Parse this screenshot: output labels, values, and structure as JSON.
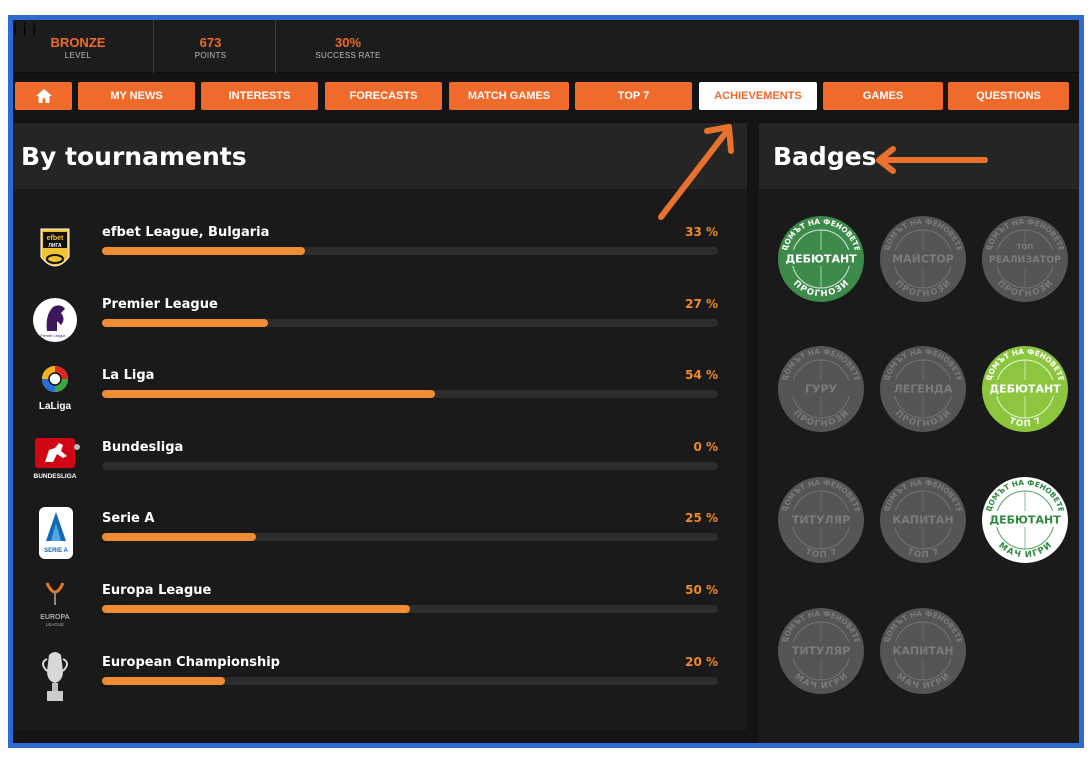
{
  "stats": [
    {
      "value": "BRONZE",
      "label": "LEVEL"
    },
    {
      "value": "673",
      "label": "POINTS"
    },
    {
      "value": "30%",
      "label": "SUCCESS RATE"
    }
  ],
  "info_glyph": "i",
  "nav": {
    "home_icon": "home-icon",
    "items": [
      "MY NEWS",
      "INTERESTS",
      "FORECASTS",
      "MATCH GAMES",
      "TOP 7",
      "ACHIEVEMENTS",
      "GAMES",
      "QUESTIONS"
    ],
    "active": "ACHIEVEMENTS"
  },
  "left_panel": {
    "title": "By tournaments",
    "tournaments": [
      {
        "name": "efbet League, Bulgaria",
        "percent_text": "33 %",
        "progress": 0.33,
        "logo": "efbet-league-logo",
        "logo_text": [
          "efbet",
          "ЛИГА"
        ]
      },
      {
        "name": "Premier League",
        "percent_text": "27 %",
        "progress": 0.27,
        "logo": "premier-league-logo",
        "logo_text": [
          "Premier League"
        ]
      },
      {
        "name": "La Liga",
        "percent_text": "54 %",
        "progress": 0.54,
        "logo": "la-liga-logo",
        "logo_text": [
          "LaLiga"
        ]
      },
      {
        "name": "Bundesliga",
        "percent_text": "0 %",
        "progress": 0.0,
        "logo": "bundesliga-logo",
        "logo_text": [
          "BUNDESLIGA"
        ]
      },
      {
        "name": "Serie A",
        "percent_text": "25 %",
        "progress": 0.25,
        "logo": "serie-a-logo",
        "logo_text": [
          "SERIE A"
        ]
      },
      {
        "name": "Europa League",
        "percent_text": "50 %",
        "progress": 0.5,
        "logo": "europa-league-logo",
        "logo_text": [
          "EUROPA",
          "LEAGUE"
        ]
      },
      {
        "name": "European Championship",
        "percent_text": "20 %",
        "progress": 0.2,
        "logo": "euro-trophy-logo",
        "logo_text": []
      }
    ]
  },
  "right_panel": {
    "title": "Badges",
    "badges": [
      {
        "top": "ДОМЪТ НА ФЕНОВЕТЕ",
        "center": "ДЕБЮТАНТ",
        "bottom": "ПРОГНОЗИ",
        "state": "earned",
        "color": "#3e8a4a"
      },
      {
        "top": "ДОМЪТ НА ФЕНОВЕТЕ",
        "center": "МАЙСТОР",
        "bottom": "ПРОГНОЗИ",
        "state": "locked",
        "color": "#555555"
      },
      {
        "top": "ДОМЪТ НА ФЕНОВЕТЕ",
        "center_small": "ТОП",
        "center": "РЕАЛИЗАТОР",
        "bottom": "ПРОГНОЗИ",
        "state": "locked",
        "color": "#555555"
      },
      {
        "top": "ДОМЪТ НА ФЕНОВЕТЕ",
        "center": "ГУРУ",
        "bottom": "ПРОГНОЗИ",
        "state": "locked",
        "color": "#555555"
      },
      {
        "top": "ДОМЪТ НА ФЕНОВЕТЕ",
        "center": "ЛЕГЕНДА",
        "bottom": "ПРОГНОЗИ",
        "state": "locked",
        "color": "#555555"
      },
      {
        "top": "ДОМЪТ НА ФЕНОВЕТЕ",
        "center": "ДЕБЮТАНТ",
        "bottom": "ТОП 7",
        "state": "earned",
        "color": "#8cc63f"
      },
      {
        "top": "ДОМЪТ НА ФЕНОВЕТЕ",
        "center": "ТИТУЛЯР",
        "bottom": "ТОП 7",
        "state": "locked",
        "color": "#555555"
      },
      {
        "top": "ДОМЪТ НА ФЕНОВЕТЕ",
        "center": "КАПИТАН",
        "bottom": "ТОП 7",
        "state": "locked",
        "color": "#555555"
      },
      {
        "top": "ДОМЪТ НА ФЕНОВЕТЕ",
        "center": "ДЕБЮТАНТ",
        "bottom": "МАЧ ИГРИ",
        "state": "earned",
        "color": "#ffffff"
      },
      {
        "top": "ДОМЪТ НА ФЕНОВЕТЕ",
        "center": "ТИТУЛЯР",
        "bottom": "МАЧ ИГРИ",
        "state": "locked",
        "color": "#555555"
      },
      {
        "top": "ДОМЪТ НА ФЕНОВЕТЕ",
        "center": "КАПИТАН",
        "bottom": "МАЧ ИГРИ",
        "state": "locked",
        "color": "#555555"
      }
    ]
  },
  "colors": {
    "accent": "#ef6a2b",
    "bar": "#ef8c35",
    "arrow": "#e8722c",
    "frame": "#2f6ad0"
  }
}
